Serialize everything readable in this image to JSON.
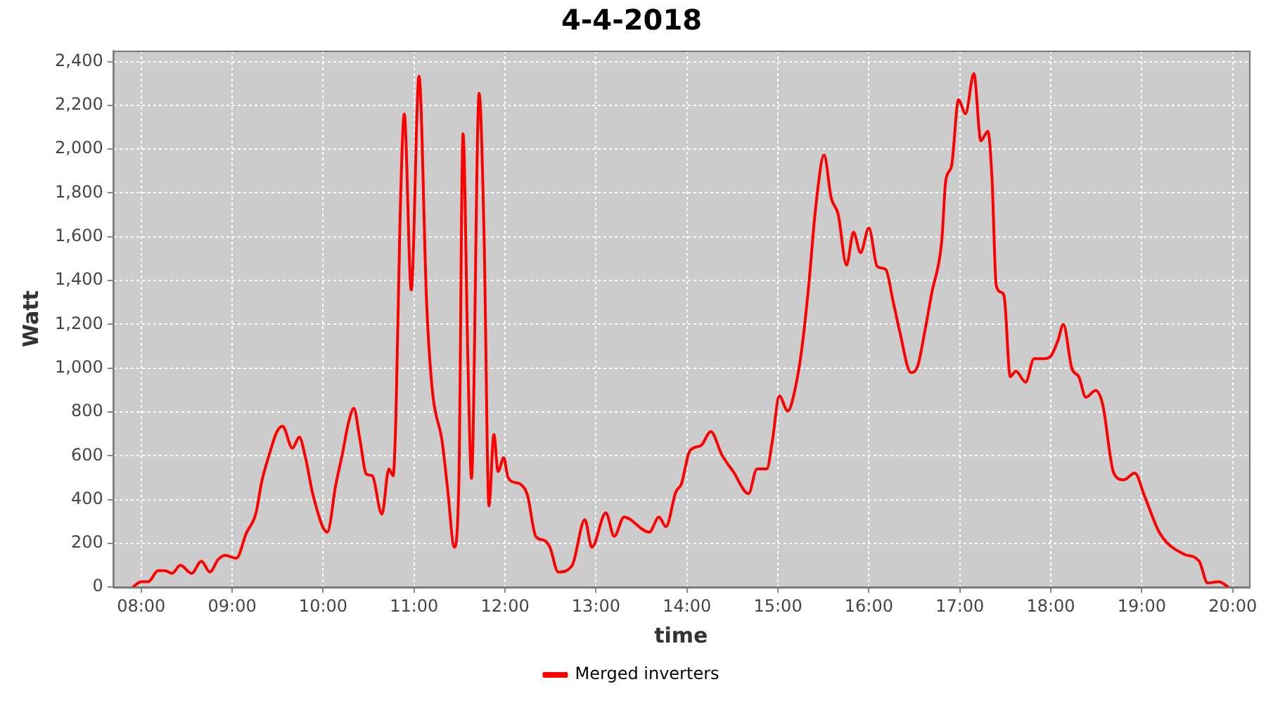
{
  "chart_data": {
    "type": "line",
    "title": "4-4-2018",
    "xlabel": "time",
    "ylabel": "Watt",
    "xlim": [
      7.69,
      20.18
    ],
    "xticks": [
      {
        "value": 8,
        "label": "08:00"
      },
      {
        "value": 9,
        "label": "09:00"
      },
      {
        "value": 10,
        "label": "10:00"
      },
      {
        "value": 11,
        "label": "11:00"
      },
      {
        "value": 12,
        "label": "12:00"
      },
      {
        "value": 13,
        "label": "13:00"
      },
      {
        "value": 14,
        "label": "14:00"
      },
      {
        "value": 15,
        "label": "15:00"
      },
      {
        "value": 16,
        "label": "16:00"
      },
      {
        "value": 17,
        "label": "17:00"
      },
      {
        "value": 18,
        "label": "18:00"
      },
      {
        "value": 19,
        "label": "19:00"
      },
      {
        "value": 20,
        "label": "20:00"
      }
    ],
    "ylim": [
      0,
      2450
    ],
    "yticks": [
      0,
      200,
      400,
      600,
      800,
      {
        "value": 1000,
        "label": "1,000"
      },
      {
        "value": 1200,
        "label": "1,200"
      },
      {
        "value": 1400,
        "label": "1,400"
      },
      {
        "value": 1600,
        "label": "1,600"
      },
      {
        "value": 1800,
        "label": "1,800"
      },
      {
        "value": 2000,
        "label": "2,000"
      },
      {
        "value": 2200,
        "label": "2,200"
      },
      {
        "value": 2400,
        "label": "2,400"
      }
    ],
    "grid": true,
    "legend": "bottom",
    "marker": "none",
    "line_style": "solid",
    "x": [
      7.908,
      8.0,
      8.077,
      8.185,
      8.262,
      8.338,
      8.431,
      8.554,
      8.662,
      8.754,
      8.846,
      8.923,
      9.046,
      9.154,
      9.262,
      9.323,
      9.415,
      9.492,
      9.554,
      9.662,
      9.738,
      9.8,
      9.892,
      10.046,
      10.138,
      10.215,
      10.277,
      10.338,
      10.4,
      10.477,
      10.538,
      10.646,
      10.723,
      10.769,
      10.8,
      10.846,
      10.892,
      10.969,
      11.054,
      11.138,
      11.2,
      11.308,
      11.369,
      11.442,
      11.492,
      11.538,
      11.592,
      11.631,
      11.715,
      11.769,
      11.823,
      11.877,
      11.923,
      11.985,
      12.031,
      12.108,
      12.169,
      12.246,
      12.339,
      12.431,
      12.492,
      12.585,
      12.738,
      12.877,
      12.954,
      13.108,
      13.2,
      13.308,
      13.585,
      13.692,
      13.769,
      13.877,
      13.938,
      14.031,
      14.154,
      14.262,
      14.385,
      14.508,
      14.677,
      14.769,
      14.877,
      14.938,
      15.015,
      15.108,
      15.185,
      15.262,
      15.338,
      15.415,
      15.508,
      15.585,
      15.662,
      15.754,
      15.831,
      15.908,
      16.0,
      16.092,
      16.185,
      16.262,
      16.338,
      16.462,
      16.538,
      16.615,
      16.692,
      16.8,
      16.846,
      16.908,
      16.985,
      17.062,
      17.154,
      17.231,
      17.308,
      17.354,
      17.4,
      17.462,
      17.492,
      17.554,
      17.615,
      17.723,
      17.815,
      17.923,
      18.0,
      18.077,
      18.138,
      18.231,
      18.308,
      18.385,
      18.492,
      18.569,
      18.692,
      18.8,
      18.923,
      19.031,
      19.2,
      19.462,
      19.631,
      19.723,
      19.846,
      19.954
    ],
    "series": [
      {
        "name": "Merged inverters",
        "color": "#ff0000",
        "values": [
          0,
          25,
          25,
          75,
          75,
          63,
          100,
          63,
          119,
          69,
          126,
          145,
          132,
          245,
          339,
          478,
          616,
          710,
          735,
          635,
          685,
          603,
          415,
          251,
          465,
          616,
          748,
          817,
          685,
          515,
          509,
          333,
          540,
          509,
          779,
          1690,
          2160,
          1357,
          2333,
          1295,
          900,
          666,
          446,
          183,
          478,
          2070,
          1024,
          497,
          2255,
          1608,
          371,
          697,
          528,
          591,
          503,
          478,
          470,
          420,
          230,
          214,
          183,
          69,
          100,
          308,
          182,
          339,
          232,
          320,
          251,
          320,
          276,
          434,
          471,
          622,
          647,
          710,
          603,
          528,
          427,
          540,
          540,
          666,
          873,
          804,
          898,
          1087,
          1376,
          1734,
          1973,
          1778,
          1703,
          1470,
          1621,
          1527,
          1640,
          1464,
          1451,
          1313,
          1169,
          980,
          1012,
          1169,
          1345,
          1577,
          1860,
          1922,
          2225,
          2162,
          2345,
          2038,
          2082,
          1860,
          1376,
          1345,
          1313,
          961,
          986,
          936,
          1043,
          1043,
          1055,
          1125,
          1200,
          999,
          961,
          867,
          898,
          836,
          521,
          490,
          521,
          415,
          245,
          151,
          119,
          19,
          25,
          0
        ]
      }
    ]
  }
}
